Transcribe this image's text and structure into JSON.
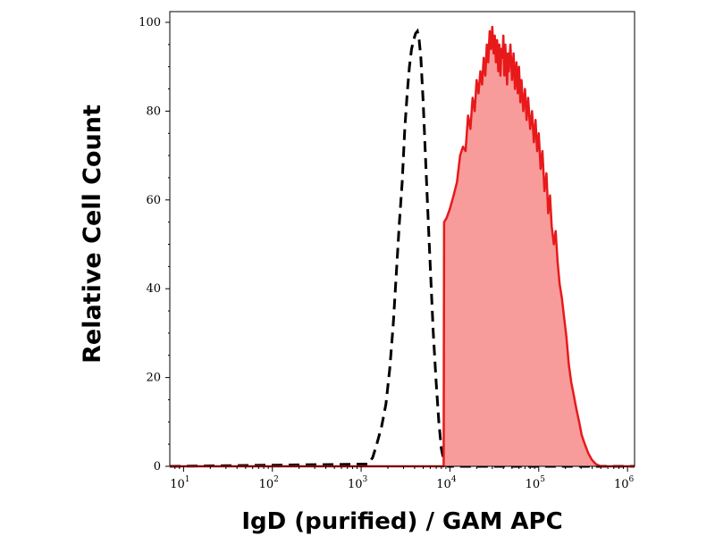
{
  "chart_data": {
    "type": "area",
    "title": "",
    "xlabel": "IgD (purified) / GAM APC",
    "ylabel": "Relative Cell Count",
    "x_scale": "log",
    "xlim": [
      7,
      1200000
    ],
    "ylim": [
      0,
      100
    ],
    "grid": false,
    "y_ticks": [
      0,
      20,
      40,
      60,
      80,
      100
    ],
    "x_ticks": [
      {
        "value": 10,
        "base": "10",
        "exp": "1"
      },
      {
        "value": 100,
        "base": "10",
        "exp": "2"
      },
      {
        "value": 1000,
        "base": "10",
        "exp": "3"
      },
      {
        "value": 10000,
        "base": "10",
        "exp": "4"
      },
      {
        "value": 100000,
        "base": "10",
        "exp": "5"
      },
      {
        "value": 1000000,
        "base": "10",
        "exp": "6"
      }
    ],
    "series": [
      {
        "style": "dashed-black-line",
        "color": "#000000",
        "points": [
          [
            7,
            0
          ],
          [
            1200,
            0.5
          ],
          [
            1350,
            2
          ],
          [
            1500,
            5
          ],
          [
            1700,
            9
          ],
          [
            1900,
            14
          ],
          [
            2100,
            22
          ],
          [
            2300,
            32
          ],
          [
            2500,
            44
          ],
          [
            2700,
            55
          ],
          [
            2900,
            64
          ],
          [
            3100,
            76
          ],
          [
            3300,
            84
          ],
          [
            3500,
            90
          ],
          [
            3700,
            94
          ],
          [
            3900,
            96
          ],
          [
            4100,
            97.5
          ],
          [
            4300,
            98
          ],
          [
            4500,
            96
          ],
          [
            4700,
            92
          ],
          [
            5000,
            82
          ],
          [
            5300,
            70
          ],
          [
            5700,
            55
          ],
          [
            6100,
            42
          ],
          [
            6500,
            30
          ],
          [
            7000,
            19
          ],
          [
            7500,
            10
          ],
          [
            8000,
            4
          ],
          [
            8600,
            1
          ],
          [
            9500,
            0
          ],
          [
            1200000,
            0
          ]
        ]
      },
      {
        "style": "filled-red-area",
        "color": "#e8191b",
        "fill": "#f89b9b",
        "points": [
          [
            7,
            0
          ],
          [
            8500,
            0
          ],
          [
            8600,
            55
          ],
          [
            9200,
            56
          ],
          [
            10000,
            58
          ],
          [
            11000,
            61
          ],
          [
            12000,
            64
          ],
          [
            13000,
            70
          ],
          [
            14000,
            72
          ],
          [
            15000,
            71
          ],
          [
            16000,
            79
          ],
          [
            17000,
            76
          ],
          [
            18000,
            83
          ],
          [
            19000,
            80
          ],
          [
            20000,
            87
          ],
          [
            21000,
            84
          ],
          [
            22000,
            89
          ],
          [
            23000,
            86
          ],
          [
            24000,
            92
          ],
          [
            25000,
            88
          ],
          [
            26000,
            95
          ],
          [
            27000,
            91
          ],
          [
            28000,
            98
          ],
          [
            29000,
            94
          ],
          [
            30000,
            99
          ],
          [
            31000,
            93
          ],
          [
            32000,
            97
          ],
          [
            33000,
            91
          ],
          [
            34000,
            96
          ],
          [
            35000,
            89
          ],
          [
            36000,
            95
          ],
          [
            37000,
            88
          ],
          [
            38000,
            94
          ],
          [
            39000,
            92
          ],
          [
            40000,
            97
          ],
          [
            41000,
            88
          ],
          [
            42000,
            95
          ],
          [
            43000,
            90
          ],
          [
            44000,
            86
          ],
          [
            45000,
            93
          ],
          [
            46000,
            89
          ],
          [
            48000,
            95
          ],
          [
            50000,
            87
          ],
          [
            52000,
            93
          ],
          [
            54000,
            85
          ],
          [
            56000,
            91
          ],
          [
            58000,
            84
          ],
          [
            60000,
            90
          ],
          [
            62000,
            82
          ],
          [
            64000,
            87
          ],
          [
            67000,
            80
          ],
          [
            70000,
            85
          ],
          [
            73000,
            78
          ],
          [
            76000,
            83
          ],
          [
            80000,
            76
          ],
          [
            84000,
            80
          ],
          [
            88000,
            73
          ],
          [
            92000,
            78
          ],
          [
            96000,
            71
          ],
          [
            100000,
            75
          ],
          [
            105000,
            67
          ],
          [
            110000,
            71
          ],
          [
            116000,
            62
          ],
          [
            122000,
            66
          ],
          [
            128000,
            57
          ],
          [
            134000,
            61
          ],
          [
            140000,
            54
          ],
          [
            148000,
            50
          ],
          [
            155000,
            53
          ],
          [
            163000,
            46
          ],
          [
            172000,
            41
          ],
          [
            182000,
            38
          ],
          [
            192000,
            34
          ],
          [
            205000,
            29
          ],
          [
            218000,
            23
          ],
          [
            232000,
            19
          ],
          [
            248000,
            16
          ],
          [
            265000,
            13
          ],
          [
            285000,
            10
          ],
          [
            305000,
            7
          ],
          [
            330000,
            5
          ],
          [
            360000,
            3
          ],
          [
            395000,
            1.5
          ],
          [
            440000,
            0.5
          ],
          [
            500000,
            0
          ],
          [
            1200000,
            0
          ]
        ]
      }
    ]
  }
}
